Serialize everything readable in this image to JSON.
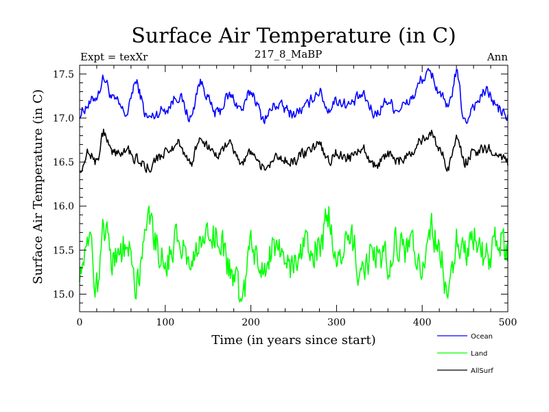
{
  "chart_data": {
    "type": "line",
    "title": "Surface Air Temperature (in C)",
    "subtitle_left": "Expt = texXr",
    "subtitle_center": "217_8_MaBP",
    "subtitle_right": "Ann",
    "xlabel": "Time (in years since start)",
    "ylabel": "Surface Air Temperature (in C)",
    "xlim": [
      0,
      500
    ],
    "ylim": [
      14.8,
      17.6
    ],
    "xticks": [
      0,
      100,
      200,
      300,
      400,
      500
    ],
    "xtick_labels": [
      "0",
      "100",
      "200",
      "300",
      "400",
      "500"
    ],
    "yticks": [
      15.0,
      15.5,
      16.0,
      16.5,
      17.0,
      17.5
    ],
    "ytick_labels": [
      "15.0",
      "15.5",
      "16.0",
      "16.5",
      "17.0",
      "17.5"
    ],
    "grid": false,
    "legend_position": "bottom-right",
    "series": [
      {
        "name": "Ocean",
        "color": "#0000ff",
        "x": [
          0,
          10,
          20,
          28,
          40,
          55,
          65,
          80,
          100,
          115,
          130,
          140,
          160,
          175,
          190,
          200,
          215,
          230,
          250,
          260,
          280,
          290,
          300,
          315,
          330,
          345,
          360,
          370,
          380,
          390,
          400,
          410,
          420,
          430,
          440,
          450,
          460,
          475,
          490,
          500
        ],
        "values": [
          17.05,
          17.15,
          17.25,
          17.45,
          17.2,
          17.05,
          17.4,
          17.0,
          17.1,
          17.25,
          17.0,
          17.4,
          17.05,
          17.25,
          17.1,
          17.3,
          17.0,
          17.15,
          17.05,
          17.1,
          17.3,
          17.1,
          17.2,
          17.15,
          17.25,
          17.05,
          17.2,
          17.1,
          17.15,
          17.25,
          17.45,
          17.5,
          17.3,
          17.1,
          17.5,
          16.95,
          17.15,
          17.3,
          17.1,
          17.0
        ]
      },
      {
        "name": "Land",
        "color": "#00ff00",
        "x": [
          0,
          10,
          20,
          28,
          40,
          55,
          65,
          80,
          100,
          115,
          130,
          140,
          160,
          175,
          190,
          200,
          215,
          230,
          250,
          260,
          280,
          290,
          300,
          315,
          330,
          345,
          360,
          370,
          380,
          390,
          400,
          410,
          420,
          430,
          440,
          450,
          460,
          475,
          490,
          500
        ],
        "values": [
          15.3,
          15.6,
          15.1,
          15.7,
          15.4,
          15.55,
          15.1,
          15.8,
          15.4,
          15.6,
          15.25,
          15.5,
          15.7,
          15.3,
          14.95,
          15.5,
          15.35,
          15.6,
          15.3,
          15.55,
          15.5,
          15.9,
          15.45,
          15.7,
          15.2,
          15.5,
          15.35,
          15.6,
          15.45,
          15.55,
          15.3,
          15.75,
          15.5,
          14.9,
          15.6,
          15.45,
          15.7,
          15.4,
          15.6,
          15.5
        ]
      },
      {
        "name": "AllSurf",
        "color": "#000000",
        "x": [
          0,
          10,
          20,
          28,
          40,
          55,
          65,
          80,
          100,
          115,
          130,
          140,
          160,
          175,
          190,
          200,
          215,
          230,
          250,
          260,
          280,
          290,
          300,
          315,
          330,
          345,
          360,
          370,
          380,
          390,
          400,
          410,
          420,
          430,
          440,
          450,
          460,
          475,
          490,
          500
        ],
        "values": [
          16.45,
          16.6,
          16.5,
          16.85,
          16.6,
          16.65,
          16.55,
          16.45,
          16.6,
          16.7,
          16.5,
          16.75,
          16.6,
          16.7,
          16.5,
          16.6,
          16.45,
          16.55,
          16.5,
          16.6,
          16.7,
          16.5,
          16.6,
          16.55,
          16.65,
          16.45,
          16.6,
          16.5,
          16.55,
          16.65,
          16.75,
          16.85,
          16.65,
          16.45,
          16.75,
          16.5,
          16.6,
          16.65,
          16.55,
          16.5
        ]
      }
    ]
  }
}
